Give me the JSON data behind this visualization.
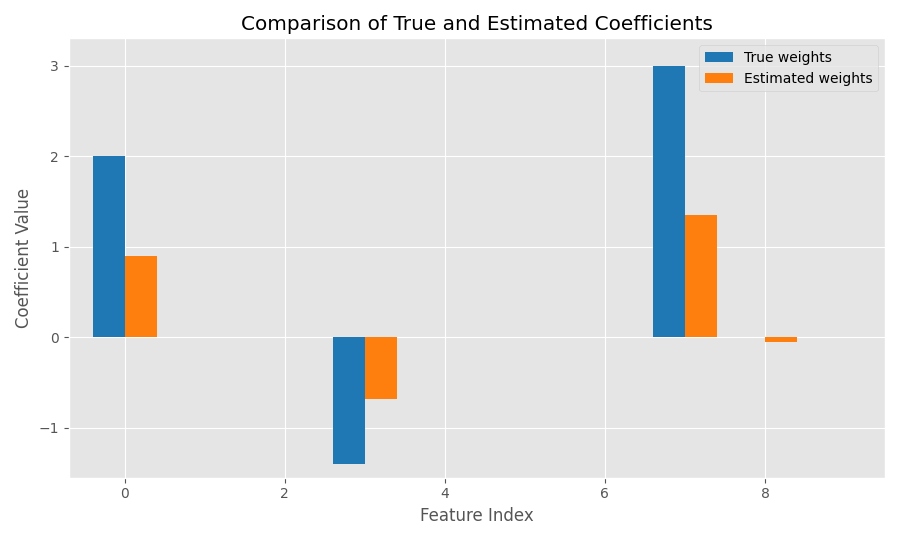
{
  "title": "Comparison of True and Estimated Coefficients",
  "xlabel": "Feature Index",
  "ylabel": "Coefficient Value",
  "n_features": 10,
  "true_weights": [
    2.0,
    0.0,
    0.0,
    -1.4,
    0.0,
    0.0,
    0.0,
    3.0,
    0.0,
    0.0
  ],
  "estimated_weights": [
    0.9,
    0.0,
    0.0,
    -0.68,
    0.0,
    0.0,
    0.0,
    1.35,
    -0.05,
    0.0
  ],
  "true_color": "#1f77b4",
  "estimated_color": "#ff7f0e",
  "true_label": "True weights",
  "estimated_label": "Estimated weights",
  "bar_width": 0.4,
  "xticks": [
    0,
    2,
    4,
    6,
    8
  ],
  "yticks": [
    -1,
    0,
    1,
    2,
    3
  ],
  "xlim": [
    -0.7,
    9.5
  ],
  "ylim": [
    -1.55,
    3.3
  ],
  "figsize": [
    9.0,
    5.4
  ],
  "dpi": 100,
  "bg_color": "#f0f0f0",
  "axes_bg_color": "#f0f0f0"
}
